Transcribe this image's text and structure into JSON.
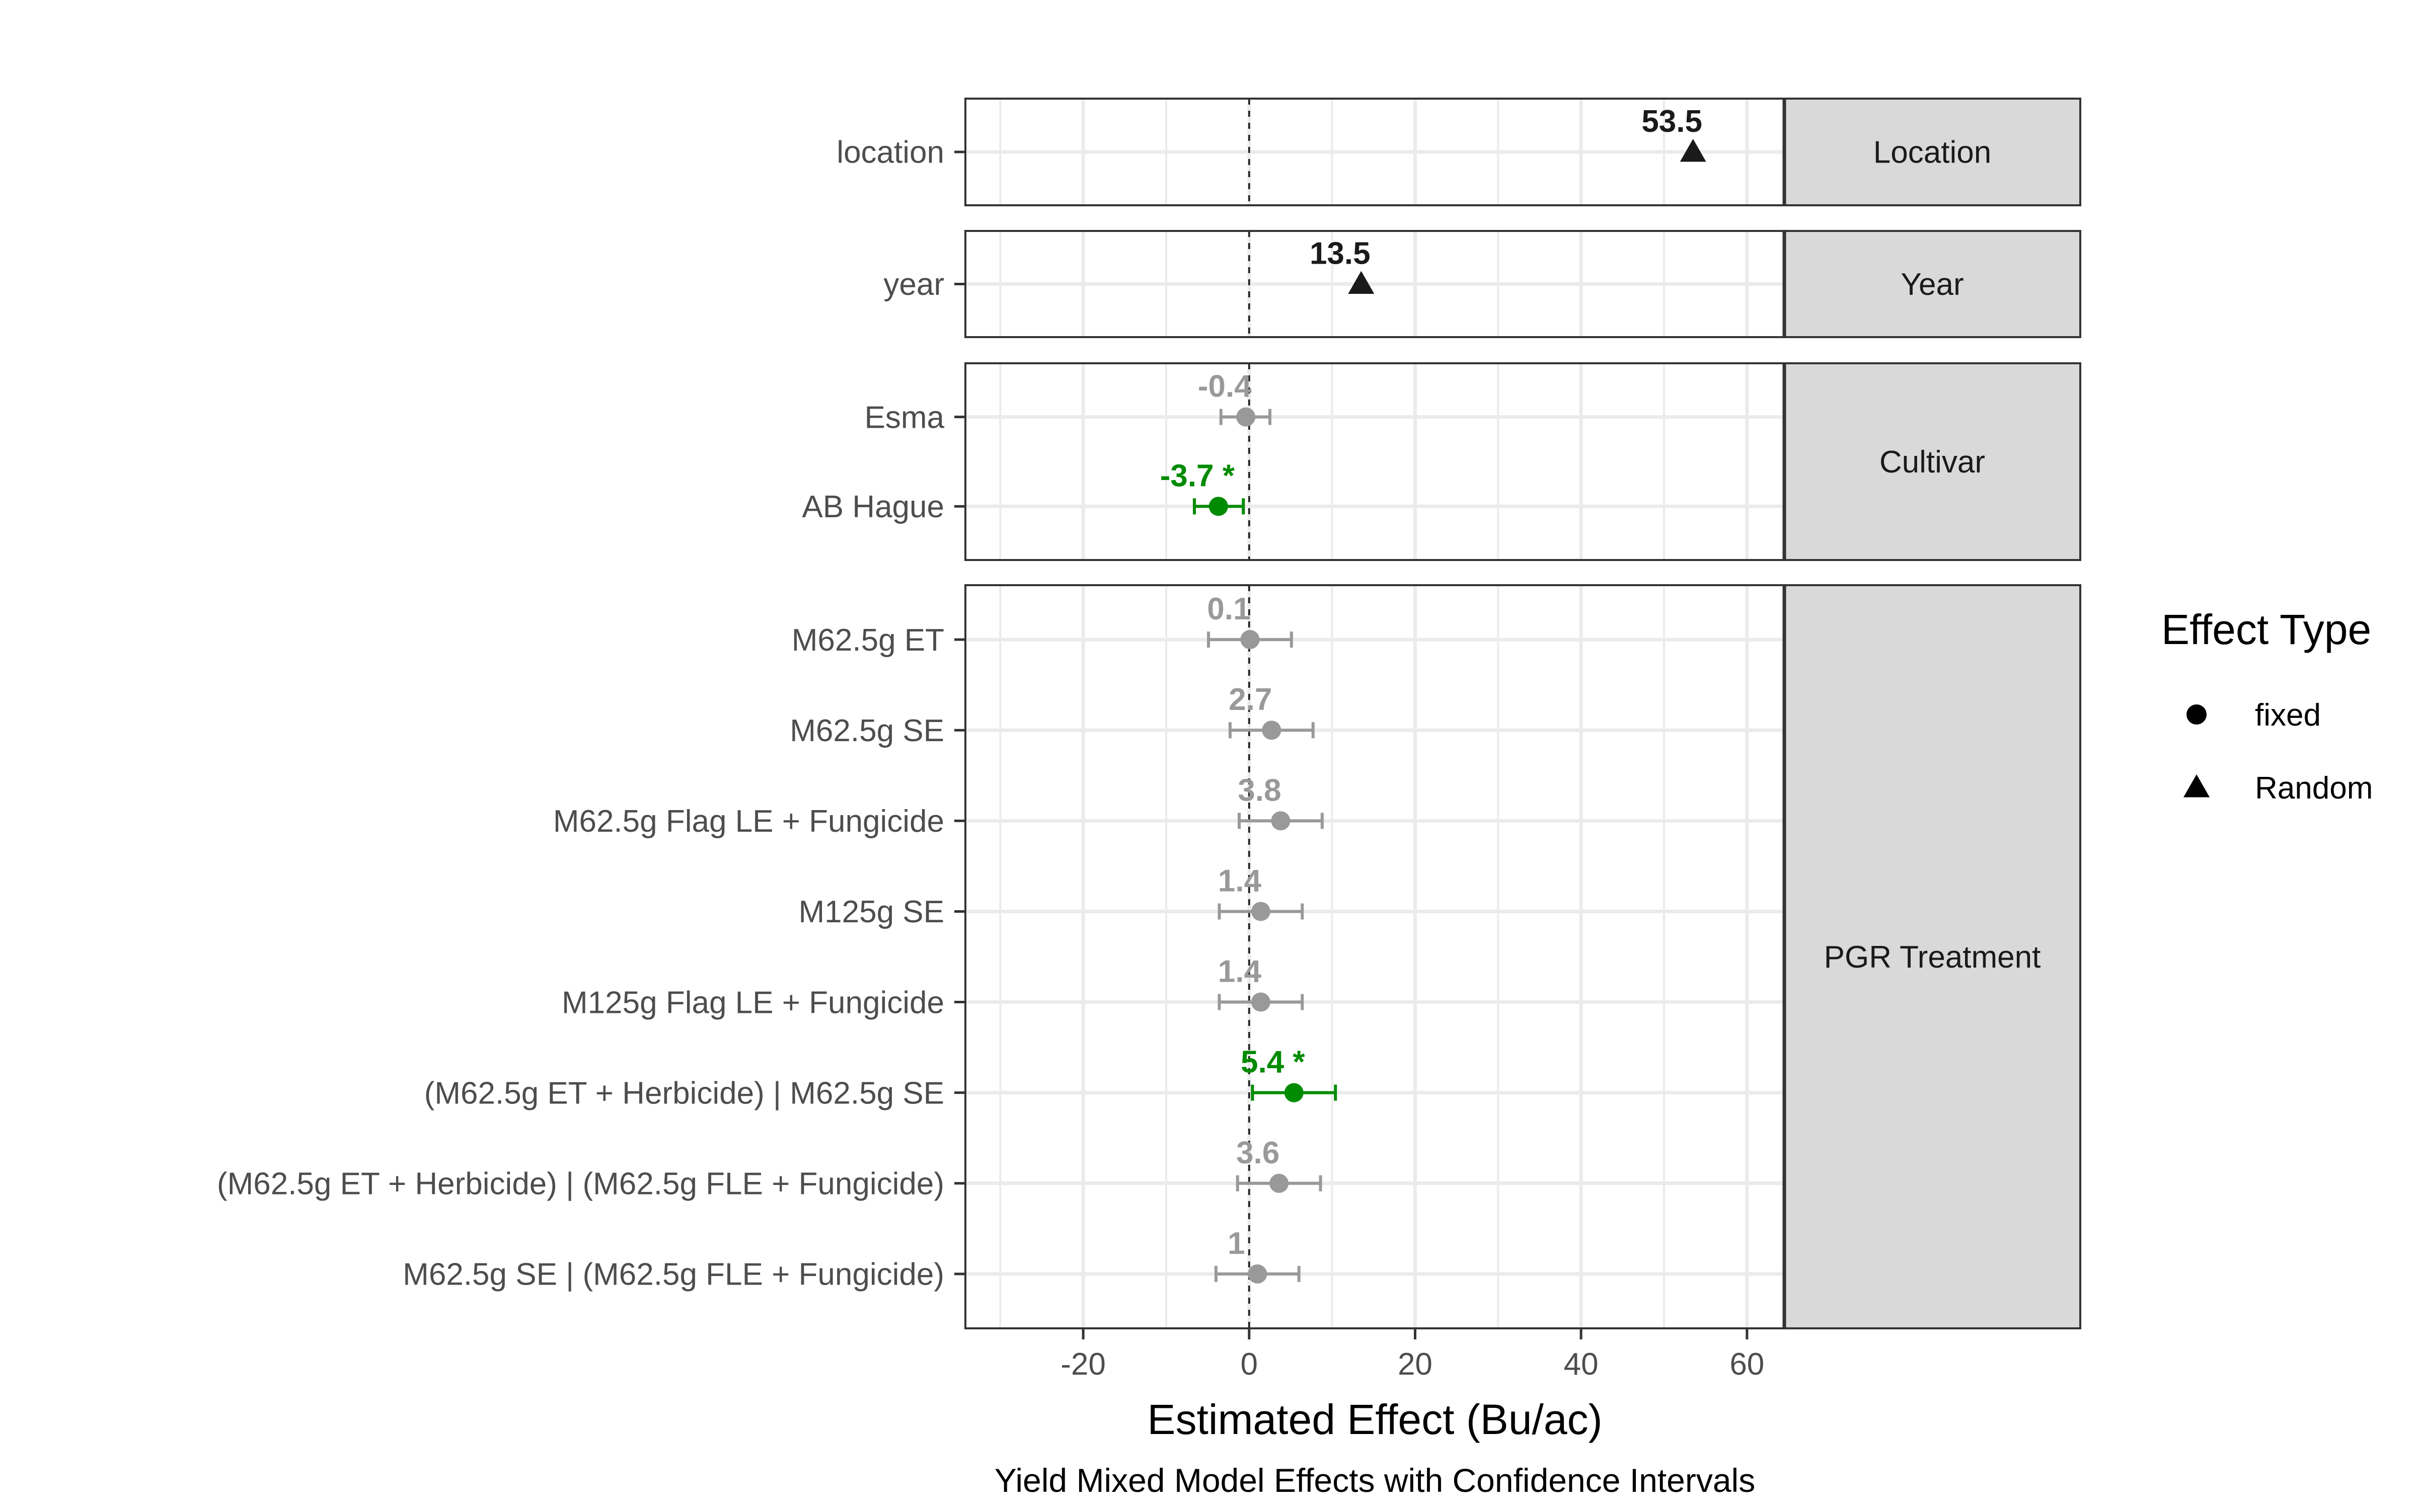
{
  "chart_data": {
    "type": "scatter",
    "caption": "Yield Mixed Model Effects with Confidence Intervals",
    "xlabel": "Estimated Effect (Bu/ac)",
    "ylabel": "",
    "xlim": [
      -34.2,
      64.5
    ],
    "xticks": [
      -20,
      0,
      20,
      40,
      60
    ],
    "xtick_labels": [
      "-20",
      "0",
      "20",
      "40",
      "60"
    ],
    "grid": true,
    "reference_line": 0,
    "legend": {
      "title": "Effect Type",
      "placement": "right",
      "items": [
        {
          "label": "fixed",
          "shape": "circle"
        },
        {
          "label": "Random",
          "shape": "triangle"
        }
      ]
    },
    "colors": {
      "significant": "#008b00",
      "not_significant": "#999999",
      "random": "#1a1a1a",
      "strip_fill": "#d9d9d9",
      "grid": "#ebebeb"
    },
    "panels": [
      {
        "strip": "Location",
        "rows": [
          {
            "label": "location",
            "estimate": 53.5,
            "value_label": "53.5",
            "effect_type": "Random",
            "ci": null,
            "significant": false
          }
        ]
      },
      {
        "strip": "Year",
        "rows": [
          {
            "label": "year",
            "estimate": 13.5,
            "value_label": "13.5",
            "effect_type": "Random",
            "ci": null,
            "significant": false
          }
        ]
      },
      {
        "strip": "Cultivar",
        "rows": [
          {
            "label": "Esma",
            "estimate": -0.4,
            "value_label": "-0.4",
            "effect_type": "fixed",
            "ci": [
              -3.4,
              2.5
            ],
            "significant": false
          },
          {
            "label": "AB Hague",
            "estimate": -3.7,
            "value_label": "-3.7 *",
            "effect_type": "fixed",
            "ci": [
              -6.6,
              -0.7
            ],
            "significant": true
          }
        ]
      },
      {
        "strip": "PGR Treatment",
        "rows": [
          {
            "label": "M62.5g ET",
            "estimate": 0.1,
            "value_label": "0.1",
            "effect_type": "fixed",
            "ci": [
              -4.9,
              5.1
            ],
            "significant": false
          },
          {
            "label": "M62.5g SE",
            "estimate": 2.7,
            "value_label": "2.7",
            "effect_type": "fixed",
            "ci": [
              -2.3,
              7.7
            ],
            "significant": false
          },
          {
            "label": "M62.5g Flag LE + Fungicide",
            "estimate": 3.8,
            "value_label": "3.8",
            "effect_type": "fixed",
            "ci": [
              -1.2,
              8.8
            ],
            "significant": false
          },
          {
            "label": "M125g SE",
            "estimate": 1.4,
            "value_label": "1.4",
            "effect_type": "fixed",
            "ci": [
              -3.6,
              6.4
            ],
            "significant": false
          },
          {
            "label": "M125g Flag LE + Fungicide",
            "estimate": 1.4,
            "value_label": "1.4",
            "effect_type": "fixed",
            "ci": [
              -3.6,
              6.4
            ],
            "significant": false
          },
          {
            "label": "(M62.5g ET + Herbicide) | M62.5g SE",
            "estimate": 5.4,
            "value_label": "5.4 *",
            "effect_type": "fixed",
            "ci": [
              0.4,
              10.4
            ],
            "significant": true
          },
          {
            "label": "(M62.5g ET + Herbicide) | (M62.5g FLE + Fungicide)",
            "estimate": 3.6,
            "value_label": "3.6",
            "effect_type": "fixed",
            "ci": [
              -1.4,
              8.6
            ],
            "significant": false
          },
          {
            "label": "M62.5g SE | (M62.5g FLE + Fungicide)",
            "estimate": 1,
            "value_label": "1",
            "effect_type": "fixed",
            "ci": [
              -4.0,
              6.0
            ],
            "significant": false
          }
        ]
      }
    ]
  }
}
